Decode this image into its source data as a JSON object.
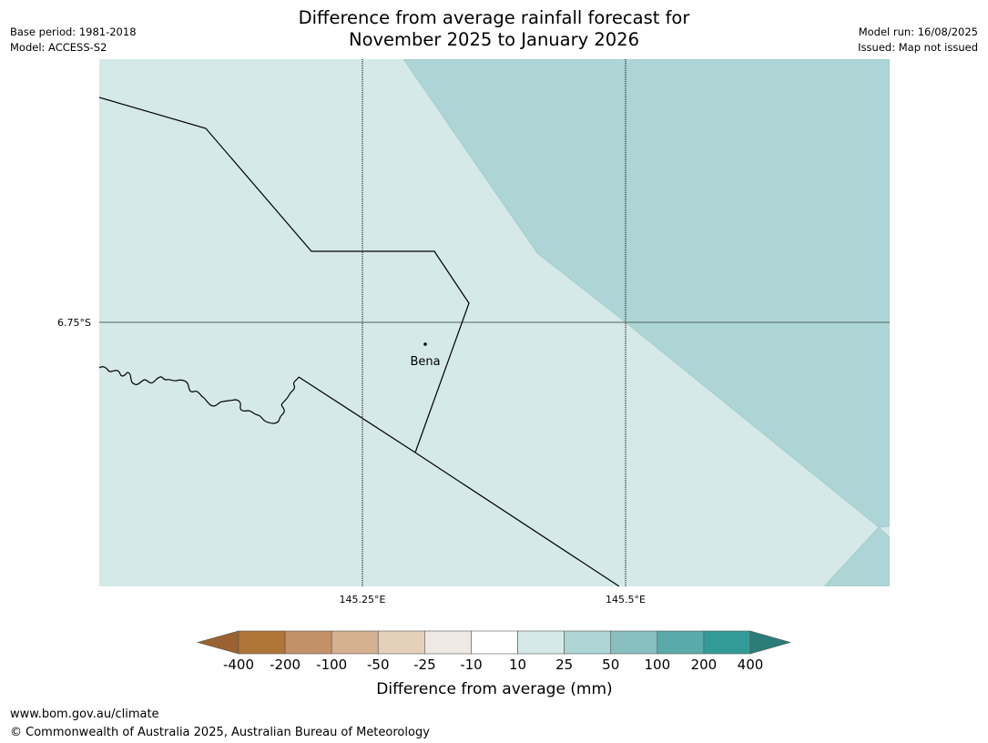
{
  "header": {
    "base_period": "Base period: 1981-2018",
    "model": "Model: ACCESS-S2",
    "model_run": "Model run: 16/08/2025",
    "issued": "Issued: Map not issued"
  },
  "title": {
    "line1": "Difference from average rainfall forecast for",
    "line2": "November 2025 to January 2026"
  },
  "map": {
    "lat_label": "6.75°S",
    "lon_labels": [
      "145.25°E",
      "145.5°E"
    ],
    "place_label": "Bena",
    "colors": {
      "land_light": "#d5e9e8",
      "teal_region": "#add5d5",
      "boundary": "#000000",
      "gridline": "#4f6461"
    }
  },
  "legend": {
    "ticks": [
      "-400",
      "-200",
      "-100",
      "-50",
      "-25",
      "-10",
      "10",
      "25",
      "50",
      "100",
      "200",
      "400"
    ],
    "colors": [
      "#9a6230",
      "#b07638",
      "#c39168",
      "#d4b090",
      "#e5d0bb",
      "#efe9e4",
      "#ffffff",
      "#d5e9e8",
      "#add5d5",
      "#88bfbf",
      "#5aaaaa",
      "#329b98",
      "#2b7d79"
    ],
    "label": "Difference from average (mm)"
  },
  "footer": {
    "url": "www.bom.gov.au/climate",
    "copyright": "© Commonwealth of Australia 2025, Australian Bureau of Meteorology"
  }
}
